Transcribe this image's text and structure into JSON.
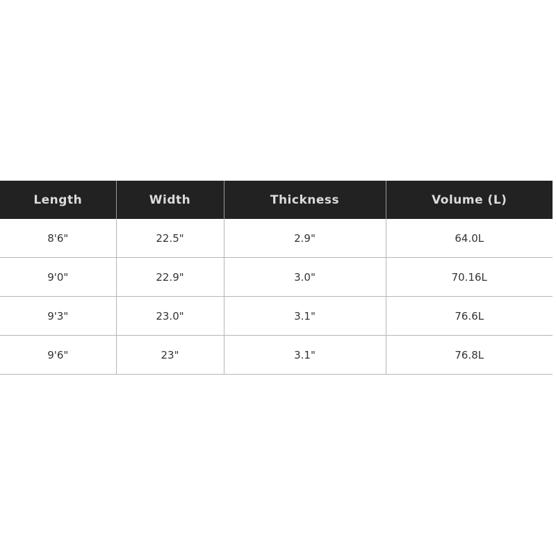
{
  "table": {
    "headers": [
      "Length",
      "Width",
      "Thickness",
      "Volume (L)"
    ],
    "rows": [
      [
        "8'6\"",
        "22.5\"",
        "2.9\"",
        "64.0L"
      ],
      [
        "9'0\"",
        "22.9\"",
        "3.0\"",
        "70.16L"
      ],
      [
        "9'3\"",
        "23.0\"",
        "3.1\"",
        "76.6L"
      ],
      [
        "9'6\"",
        "23\"",
        "3.1\"",
        "76.8L"
      ]
    ]
  }
}
